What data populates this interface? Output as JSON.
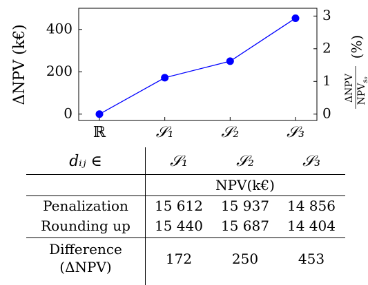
{
  "chart_data": {
    "type": "line",
    "categories": [
      "ℝ",
      "𝒮₁",
      "𝒮₂",
      "𝒮₃"
    ],
    "values": [
      0,
      172,
      250,
      453
    ],
    "ylabel": "ΔNPV (k€)",
    "ylim": [
      -30,
      500
    ],
    "yticks": [
      "0",
      "200",
      "400"
    ],
    "ylabel_right": {
      "numerator": "ΔNPV",
      "denominator": "NPV",
      "denominator_subscript": "s₀",
      "unit": "(%)"
    },
    "y2ticks": [
      "0",
      "1",
      "2",
      "3"
    ],
    "line_color": "#0000ff",
    "grid": false
  },
  "table": {
    "corner_label": "dᵢⱼ ∈",
    "columns": [
      "𝒮₁",
      "𝒮₂",
      "𝒮₃"
    ],
    "unit_row": "NPV(k€)",
    "rows": [
      {
        "label": "Penalization",
        "values": [
          "15 612",
          "15 937",
          "14 856"
        ]
      },
      {
        "label": "Rounding up",
        "values": [
          "15 440",
          "15 687",
          "14 404"
        ]
      }
    ],
    "difference": {
      "label_line1": "Difference",
      "label_line2": "(ΔNPV)",
      "values": [
        "172",
        "250",
        "453"
      ]
    }
  }
}
